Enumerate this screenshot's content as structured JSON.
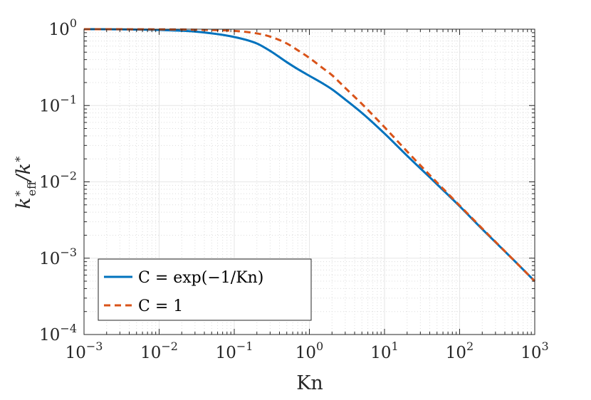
{
  "chart_data": {
    "type": "line",
    "xscale": "log",
    "yscale": "log",
    "xlim": [
      0.001,
      1000
    ],
    "ylim": [
      0.0001,
      1
    ],
    "grid": true,
    "minor_grid": true,
    "xlabel": "Kn",
    "ylabel": "k*eff / k*",
    "x_ticks": [
      {
        "base": "10",
        "exp": "−3"
      },
      {
        "base": "10",
        "exp": "−2"
      },
      {
        "base": "10",
        "exp": "−1"
      },
      {
        "base": "10",
        "exp": "0"
      },
      {
        "base": "10",
        "exp": "1"
      },
      {
        "base": "10",
        "exp": "2"
      },
      {
        "base": "10",
        "exp": "3"
      }
    ],
    "y_ticks": [
      {
        "base": "10",
        "exp": "0"
      },
      {
        "base": "10",
        "exp": "−1"
      },
      {
        "base": "10",
        "exp": "−2"
      },
      {
        "base": "10",
        "exp": "−3"
      },
      {
        "base": "10",
        "exp": "−4"
      }
    ],
    "legend_position": "bottom-left",
    "series": [
      {
        "name": "C = exp(−1/Kn)",
        "color": "#0072BD",
        "style": "solid",
        "x": [
          0.001,
          0.003,
          0.01,
          0.03,
          0.1,
          0.2,
          0.3,
          0.5,
          0.7,
          1,
          1.5,
          2,
          3,
          5,
          10,
          20,
          50,
          100,
          200,
          500,
          1000
        ],
        "y": [
          1.0,
          0.995,
          0.975,
          0.93,
          0.79,
          0.65,
          0.52,
          0.37,
          0.3,
          0.245,
          0.195,
          0.163,
          0.12,
          0.08,
          0.043,
          0.022,
          0.0093,
          0.0048,
          0.0024,
          0.00099,
          0.0005
        ]
      },
      {
        "name": "C = 1",
        "color": "#D95319",
        "style": "dashed",
        "x": [
          0.001,
          0.003,
          0.01,
          0.03,
          0.1,
          0.2,
          0.3,
          0.5,
          0.7,
          1,
          1.5,
          2,
          3,
          5,
          10,
          20,
          50,
          100,
          200,
          500,
          1000
        ],
        "y": [
          1.0,
          0.999,
          0.995,
          0.985,
          0.95,
          0.88,
          0.8,
          0.65,
          0.53,
          0.42,
          0.31,
          0.25,
          0.17,
          0.105,
          0.052,
          0.025,
          0.0098,
          0.0049,
          0.00245,
          0.00099,
          0.0005
        ]
      }
    ]
  }
}
